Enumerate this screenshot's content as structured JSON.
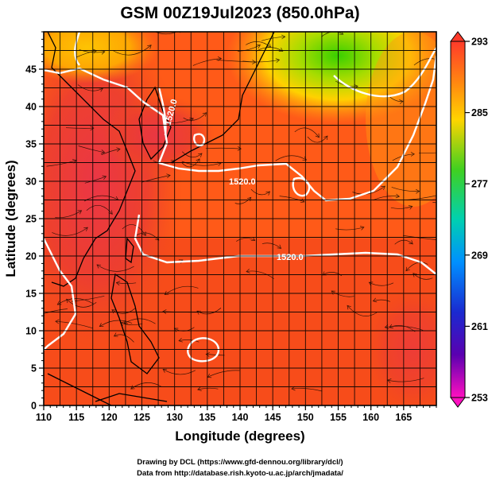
{
  "title": "GSM 00Z19Jul2023 (850.0hPa)",
  "x_axis": {
    "label": "Longitude (degrees)",
    "range": [
      110,
      170
    ],
    "ticks": [
      "110",
      "115",
      "120",
      "125",
      "130",
      "135",
      "140",
      "145",
      "150",
      "155",
      "160",
      "165"
    ]
  },
  "y_axis": {
    "label": "Latitude  (degrees)",
    "range": [
      0,
      50
    ],
    "ticks": [
      "0",
      "5",
      "10",
      "15",
      "20",
      "25",
      "30",
      "35",
      "40",
      "45"
    ]
  },
  "colorbar": {
    "range": [
      253,
      293
    ],
    "ticks": [
      "293",
      "285",
      "277",
      "269",
      "261",
      "253"
    ]
  },
  "contour_labels": [
    "1520.0",
    "1520.0",
    "1520.0"
  ],
  "credits": [
    "Drawing by DCL (https://www.gfd-dennou.org/library/dcl/)",
    "Data from http://database.rish.kyoto-u.ac.jp/arch/jmadata/"
  ],
  "colors": {
    "warm": "#e83a24",
    "orange": "#ff6a18",
    "yellow": "#ffd000",
    "green": "#3ad000",
    "land_outline": "#000000",
    "contour": "#ffffff"
  }
}
